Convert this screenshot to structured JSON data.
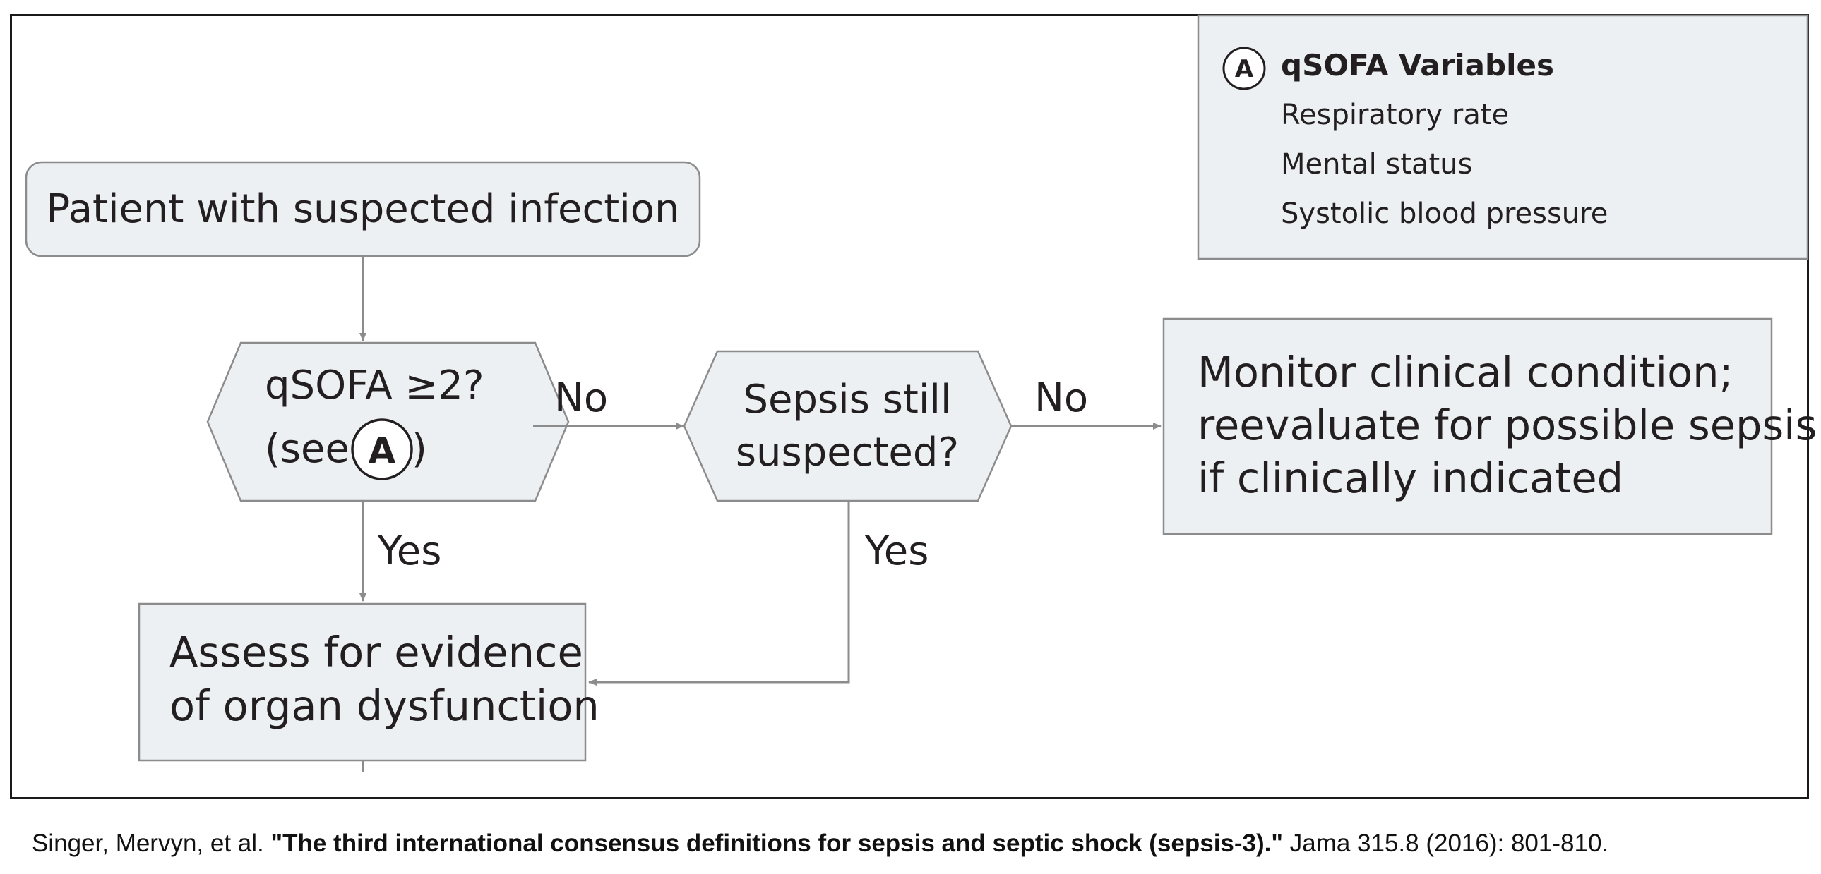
{
  "diagram": {
    "start_box": "Patient with suspected infection",
    "decision_qsofa": {
      "line1": "qSOFA ≥2?",
      "line2_prefix": "(see ",
      "line2_suffix": ")"
    },
    "decision_sepsis": {
      "line1": "Sepsis still",
      "line2": "suspected?"
    },
    "monitor_box": [
      "Monitor clinical condition;",
      "reevaluate for possible sepsis",
      "if clinically indicated"
    ],
    "assess_box": [
      "Assess for evidence",
      "of organ dysfunction"
    ],
    "edge_labels": {
      "qsofa_no": "No",
      "qsofa_yes": "Yes",
      "sepsis_no": "No",
      "sepsis_yes": "Yes"
    },
    "marker_letter": "A",
    "legend": {
      "marker": "A",
      "title": "qSOFA Variables",
      "items": [
        "Respiratory rate",
        "Mental status",
        "Systolic blood pressure"
      ]
    }
  },
  "citation": {
    "authors": "Singer, Mervyn, et al.",
    "title": "\"The third international consensus definitions for sepsis and septic shock (sepsis-3).\"",
    "source": "Jama 315.8 (2016): 801-810."
  },
  "colors": {
    "box_fill": "#edf0f3",
    "box_stroke": "#8c8c8c",
    "arrow": "#8c8c8c",
    "text": "#231f20",
    "frame": "#1a1a1a"
  }
}
